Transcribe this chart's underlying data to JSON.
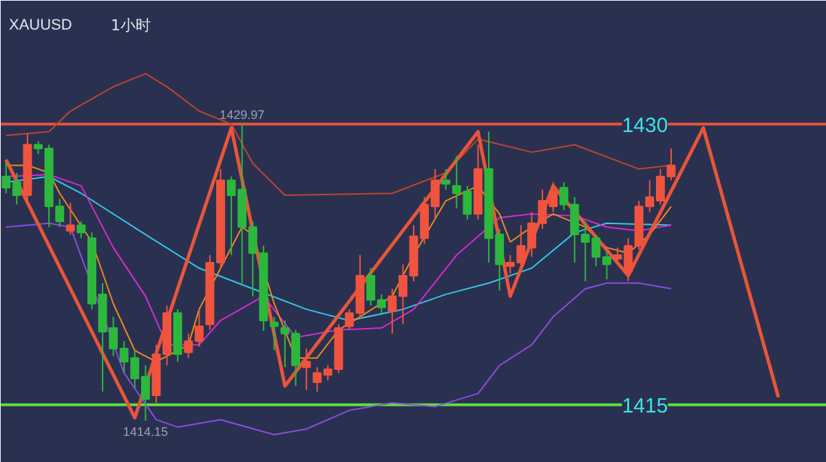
{
  "chart_data": {
    "type": "candlestick",
    "title": "XAUUSD",
    "subtitle": "1小时",
    "categories": [
      null,
      null,
      null,
      null,
      null,
      null,
      null,
      null,
      null,
      null,
      null,
      null,
      null,
      null,
      null,
      null,
      null,
      null,
      null,
      null,
      null,
      null,
      null,
      null,
      null,
      null,
      null,
      null,
      null,
      null,
      null,
      null,
      null,
      null,
      null,
      null,
      null,
      null,
      null,
      null,
      null,
      null,
      null,
      null,
      null,
      null,
      null,
      null,
      null,
      null,
      null,
      null,
      null,
      null,
      null,
      null,
      null,
      null,
      null,
      null,
      null,
      null,
      null,
      null,
      null,
      null,
      null,
      null,
      null,
      null,
      null,
      null,
      null,
      null,
      null,
      null,
      null
    ],
    "ohlc": [
      [
        1427.2,
        1428.0,
        1426.3,
        1426.6
      ],
      [
        1426.9,
        1427.4,
        1425.7,
        1426.2
      ],
      [
        1426.2,
        1429.5,
        1425.7,
        1428.9
      ],
      [
        1428.9,
        1429.1,
        1428.4,
        1428.7
      ],
      [
        1428.7,
        1428.9,
        1424.5,
        1425.6
      ],
      [
        1425.6,
        1426.0,
        1424.5,
        1424.8
      ],
      [
        1424.3,
        1425.8,
        1424.1,
        1424.6
      ],
      [
        1424.6,
        1424.8,
        1423.9,
        1424.2
      ],
      [
        1423.9,
        1424.2,
        1420.1,
        1420.4
      ],
      [
        1420.9,
        1421.5,
        1415.7,
        1418.9
      ],
      [
        1419.1,
        1419.7,
        1417.6,
        1418.0
      ],
      [
        1418.0,
        1418.4,
        1416.7,
        1417.3
      ],
      [
        1417.5,
        1417.9,
        1415.9,
        1416.4
      ],
      [
        1416.5,
        1417.1,
        1414.15,
        1415.3
      ],
      [
        1415.5,
        1418.2,
        1415.1,
        1417.7
      ],
      [
        1417.7,
        1420.3,
        1417.1,
        1419.9
      ],
      [
        1419.9,
        1420.1,
        1417.3,
        1417.7
      ],
      [
        1417.8,
        1418.8,
        1417.5,
        1418.4
      ],
      [
        1418.4,
        1420.1,
        1418.1,
        1419.2
      ],
      [
        1419.3,
        1423.0,
        1419.0,
        1422.6
      ],
      [
        1422.6,
        1427.6,
        1422.3,
        1427.0
      ],
      [
        1427.0,
        1427.2,
        1423.0,
        1426.2
      ],
      [
        1426.5,
        1429.97,
        1421.5,
        1424.5
      ],
      [
        1424.5,
        1424.8,
        1420.8,
        1423.1
      ],
      [
        1423.1,
        1423.5,
        1418.95,
        1419.5
      ],
      [
        1419.4,
        1419.7,
        1417.9,
        1419.2
      ],
      [
        1419.1,
        1419.5,
        1417.0,
        1418.8
      ],
      [
        1418.8,
        1419.0,
        1416.0,
        1417.1
      ],
      [
        1417.0,
        1418.0,
        1415.8,
        1417.3
      ],
      [
        1416.2,
        1417.0,
        1415.7,
        1416.7
      ],
      [
        1416.6,
        1417.1,
        1416.3,
        1416.9
      ],
      [
        1416.9,
        1419.3,
        1416.7,
        1419.1
      ],
      [
        1419.2,
        1420.1,
        1419.0,
        1419.9
      ],
      [
        1419.9,
        1423.0,
        1419.6,
        1421.9
      ],
      [
        1421.9,
        1422.3,
        1420.3,
        1420.6
      ],
      [
        1420.6,
        1420.9,
        1419.9,
        1420.2
      ],
      [
        1420.0,
        1421.2,
        1418.8,
        1420.8
      ],
      [
        1420.8,
        1422.5,
        1419.3,
        1421.9
      ],
      [
        1421.9,
        1424.6,
        1421.6,
        1424.0
      ],
      [
        1423.9,
        1426.1,
        1423.6,
        1425.7
      ],
      [
        1425.6,
        1427.6,
        1425.0,
        1427.0
      ],
      [
        1427.0,
        1427.6,
        1426.5,
        1426.8
      ],
      [
        1426.7,
        1428.3,
        1425.5,
        1426.3
      ],
      [
        1426.4,
        1426.7,
        1424.9,
        1425.2
      ],
      [
        1425.2,
        1428.9,
        1424.9,
        1427.6
      ],
      [
        1427.6,
        1429.6,
        1422.6,
        1423.9
      ],
      [
        1424.1,
        1424.4,
        1421.1,
        1422.5
      ],
      [
        1422.4,
        1423.0,
        1422.0,
        1422.6
      ],
      [
        1422.6,
        1424.6,
        1422.2,
        1423.5
      ],
      [
        1423.4,
        1425.3,
        1422.9,
        1424.7
      ],
      [
        1424.7,
        1426.5,
        1424.4,
        1425.9
      ],
      [
        1425.6,
        1426.9,
        1425.3,
        1426.4
      ],
      [
        1426.6,
        1426.9,
        1425.4,
        1425.7
      ],
      [
        1425.7,
        1426.1,
        1422.6,
        1424.1
      ],
      [
        1424.1,
        1424.8,
        1421.6,
        1423.7
      ],
      [
        1423.9,
        1424.1,
        1422.4,
        1422.9
      ],
      [
        1422.9,
        1423.2,
        1421.7,
        1422.5
      ],
      [
        1422.8,
        1423.4,
        1422.5,
        1423.0
      ],
      [
        1422.1,
        1423.9,
        1421.6,
        1423.5
      ],
      [
        1423.5,
        1425.9,
        1423.3,
        1425.6
      ],
      [
        1425.6,
        1427.0,
        1425.3,
        1426.1
      ],
      [
        1425.9,
        1427.6,
        1425.7,
        1427.2
      ],
      [
        1427.2,
        1428.7,
        1427.0,
        1427.8
      ],
      null,
      null,
      null,
      null,
      null,
      null,
      null,
      null,
      null,
      null,
      null,
      null,
      null,
      null
    ],
    "colors": [
      "#2db83d",
      "#2db83d",
      "#f0543f",
      "#2db83d",
      "#2db83d",
      "#2db83d",
      "#f0543f",
      "#2db83d",
      "#2db83d",
      "#2db83d",
      "#2db83d",
      "#2db83d",
      "#2db83d",
      "#2db83d",
      "#f0543f",
      "#f0543f",
      "#2db83d",
      "#f0543f",
      "#f0543f",
      "#f0543f",
      "#f0543f",
      "#2db83d",
      "#2db83d",
      "#2db83d",
      "#2db83d",
      "#2db83d",
      "#2db83d",
      "#2db83d",
      "#f0543f",
      "#f0543f",
      "#f0543f",
      "#f0543f",
      "#f0543f",
      "#f0543f",
      "#2db83d",
      "#2db83d",
      "#f0543f",
      "#f0543f",
      "#f0543f",
      "#f0543f",
      "#f0543f",
      "#2db83d",
      "#2db83d",
      "#2db83d",
      "#f0543f",
      "#2db83d",
      "#2db83d",
      "#f0543f",
      "#f0543f",
      "#f0543f",
      "#f0543f",
      "#f0543f",
      "#2db83d",
      "#2db83d",
      "#2db83d",
      "#2db83d",
      "#2db83d",
      "#f0543f",
      "#f0543f",
      "#f0543f",
      "#f0543f",
      "#f0543f",
      "#f0543f",
      null,
      null,
      null,
      null,
      null,
      null,
      null,
      null,
      null,
      null,
      null,
      null,
      null,
      null
    ],
    "series": [
      {
        "type": "line",
        "color": "#c0452f",
        "values": [
          1429.4,
          null,
          null,
          null,
          1429.6,
          null,
          1430.7,
          null,
          null,
          null,
          1432.0,
          null,
          null,
          1432.7,
          null,
          1432.0,
          null,
          null,
          1430.7,
          null,
          null,
          1430.0,
          null,
          1427.9,
          null,
          null,
          1426.2,
          null,
          null,
          null,
          null,
          null,
          null,
          null,
          null,
          null,
          1426.3,
          null,
          null,
          null,
          null,
          1427.4,
          null,
          null,
          1429.2,
          null,
          null,
          null,
          null,
          1428.5,
          null,
          null,
          null,
          1428.9,
          null,
          null,
          null,
          null,
          null,
          1427.6,
          null,
          null,
          1427.8,
          null,
          null,
          null,
          null,
          null,
          null,
          null,
          null,
          null,
          null,
          null,
          null,
          null,
          null
        ]
      },
      {
        "type": "line",
        "color": "#8a4de0",
        "values": [
          1424.5,
          null,
          null,
          null,
          1424.7,
          null,
          1424.5,
          null,
          null,
          null,
          null,
          1416.7,
          null,
          null,
          1414.2,
          null,
          1413.8,
          null,
          null,
          null,
          1414.2,
          null,
          null,
          null,
          null,
          1413.4,
          null,
          null,
          1413.7,
          null,
          null,
          null,
          1414.7,
          null,
          null,
          null,
          1415.1,
          null,
          null,
          null,
          1414.9,
          null,
          null,
          null,
          1415.6,
          null,
          1417.1,
          null,
          null,
          1418.2,
          null,
          1419.7,
          null,
          null,
          1421.2,
          null,
          1421.5,
          null,
          null,
          1421.5,
          null,
          null,
          1421.2,
          null,
          null,
          null,
          null,
          null,
          null,
          null,
          null,
          null,
          null,
          null,
          null,
          null,
          null
        ]
      },
      {
        "type": "line",
        "color": "#33c8e8",
        "values": [
          1426.9,
          null,
          null,
          null,
          1427.2,
          null,
          null,
          1426.3,
          null,
          null,
          null,
          null,
          null,
          1424.1,
          null,
          null,
          null,
          null,
          1422.3,
          null,
          null,
          null,
          null,
          1421.2,
          null,
          null,
          null,
          null,
          1420.1,
          null,
          null,
          null,
          1419.5,
          null,
          null,
          null,
          null,
          1420.1,
          null,
          null,
          null,
          1420.9,
          null,
          null,
          null,
          1421.5,
          null,
          null,
          null,
          1422.3,
          null,
          null,
          null,
          1424.2,
          null,
          null,
          1424.7,
          null,
          null,
          null,
          null,
          null,
          1424.6,
          null,
          null,
          null,
          null,
          null,
          null,
          null,
          null,
          null,
          null,
          null,
          null,
          null,
          null
        ]
      },
      {
        "type": "line",
        "color": "#d62ad6",
        "values": [
          1427.2,
          null,
          null,
          null,
          1427.3,
          null,
          null,
          1426.7,
          null,
          null,
          1423.4,
          null,
          null,
          1420.8,
          null,
          1418.2,
          null,
          null,
          1418.2,
          null,
          1419.5,
          null,
          null,
          null,
          1420.8,
          null,
          null,
          1418.6,
          null,
          null,
          null,
          1419.0,
          null,
          null,
          null,
          1419.1,
          null,
          null,
          1420.1,
          null,
          null,
          null,
          1423.0,
          null,
          null,
          null,
          1425.0,
          null,
          null,
          1425.2,
          null,
          null,
          null,
          1425.1,
          null,
          null,
          1424.5,
          null,
          null,
          1424.3,
          null,
          null,
          1424.6,
          null,
          null,
          null,
          null,
          null,
          null,
          null,
          null,
          null,
          null,
          null,
          null,
          null,
          null
        ]
      },
      {
        "type": "line",
        "color": "#f08a1c",
        "values": [
          1427.8,
          null,
          1427.8,
          null,
          1427.4,
          1426.3,
          null,
          null,
          1423.7,
          null,
          1420.4,
          null,
          1417.9,
          null,
          1417.3,
          null,
          null,
          1418.2,
          1420.1,
          null,
          1422.3,
          null,
          1424.5,
          1424.1,
          null,
          1420.4,
          null,
          1417.5,
          null,
          1417.5,
          null,
          1419.0,
          null,
          1419.7,
          null,
          null,
          1420.8,
          null,
          1423.0,
          null,
          null,
          1425.9,
          null,
          null,
          1426.7,
          null,
          1425.2,
          1423.7,
          null,
          1424.5,
          null,
          1425.2,
          null,
          null,
          1424.5,
          null,
          1423.4,
          null,
          1423.1,
          null,
          1424.1,
          null,
          1425.6,
          null,
          null,
          null,
          null,
          null,
          null,
          null,
          null,
          null,
          null,
          null,
          null,
          null,
          null
        ]
      },
      {
        "type": "line",
        "color": "#e8553a",
        "values": [
          1428.1,
          null,
          null,
          null,
          null,
          null,
          null,
          null,
          null,
          null,
          null,
          null,
          1414.3,
          null,
          null,
          null,
          null,
          null,
          null,
          null,
          null,
          1429.8,
          null,
          null,
          null,
          null,
          1416.0,
          null,
          null,
          null,
          null,
          null,
          null,
          null,
          null,
          null,
          null,
          null,
          null,
          null,
          null,
          null,
          null,
          null,
          1429.6,
          null,
          null,
          1420.8,
          null,
          null,
          null,
          1426.7,
          null,
          null,
          null,
          null,
          null,
          null,
          1421.9,
          null,
          null,
          null,
          null,
          null,
          null,
          1429.8,
          null,
          null,
          null,
          null,
          null,
          null,
          1415.4,
          null,
          null,
          null,
          null
        ]
      }
    ],
    "ylim": [
      1411.9,
      1436.6
    ],
    "yticks": [
      1415,
      1430
    ],
    "ref_lines": [
      {
        "axis": "y",
        "value": 1430,
        "color": "#e8553a"
      },
      {
        "axis": "y",
        "value": 1415,
        "color": "#5fe33a"
      }
    ],
    "annotations": [
      {
        "text": "1429.97",
        "y": 1429.97
      },
      {
        "text": "1414.15",
        "y": 1414.15
      }
    ],
    "tick_labels": "y",
    "grid": false
  }
}
